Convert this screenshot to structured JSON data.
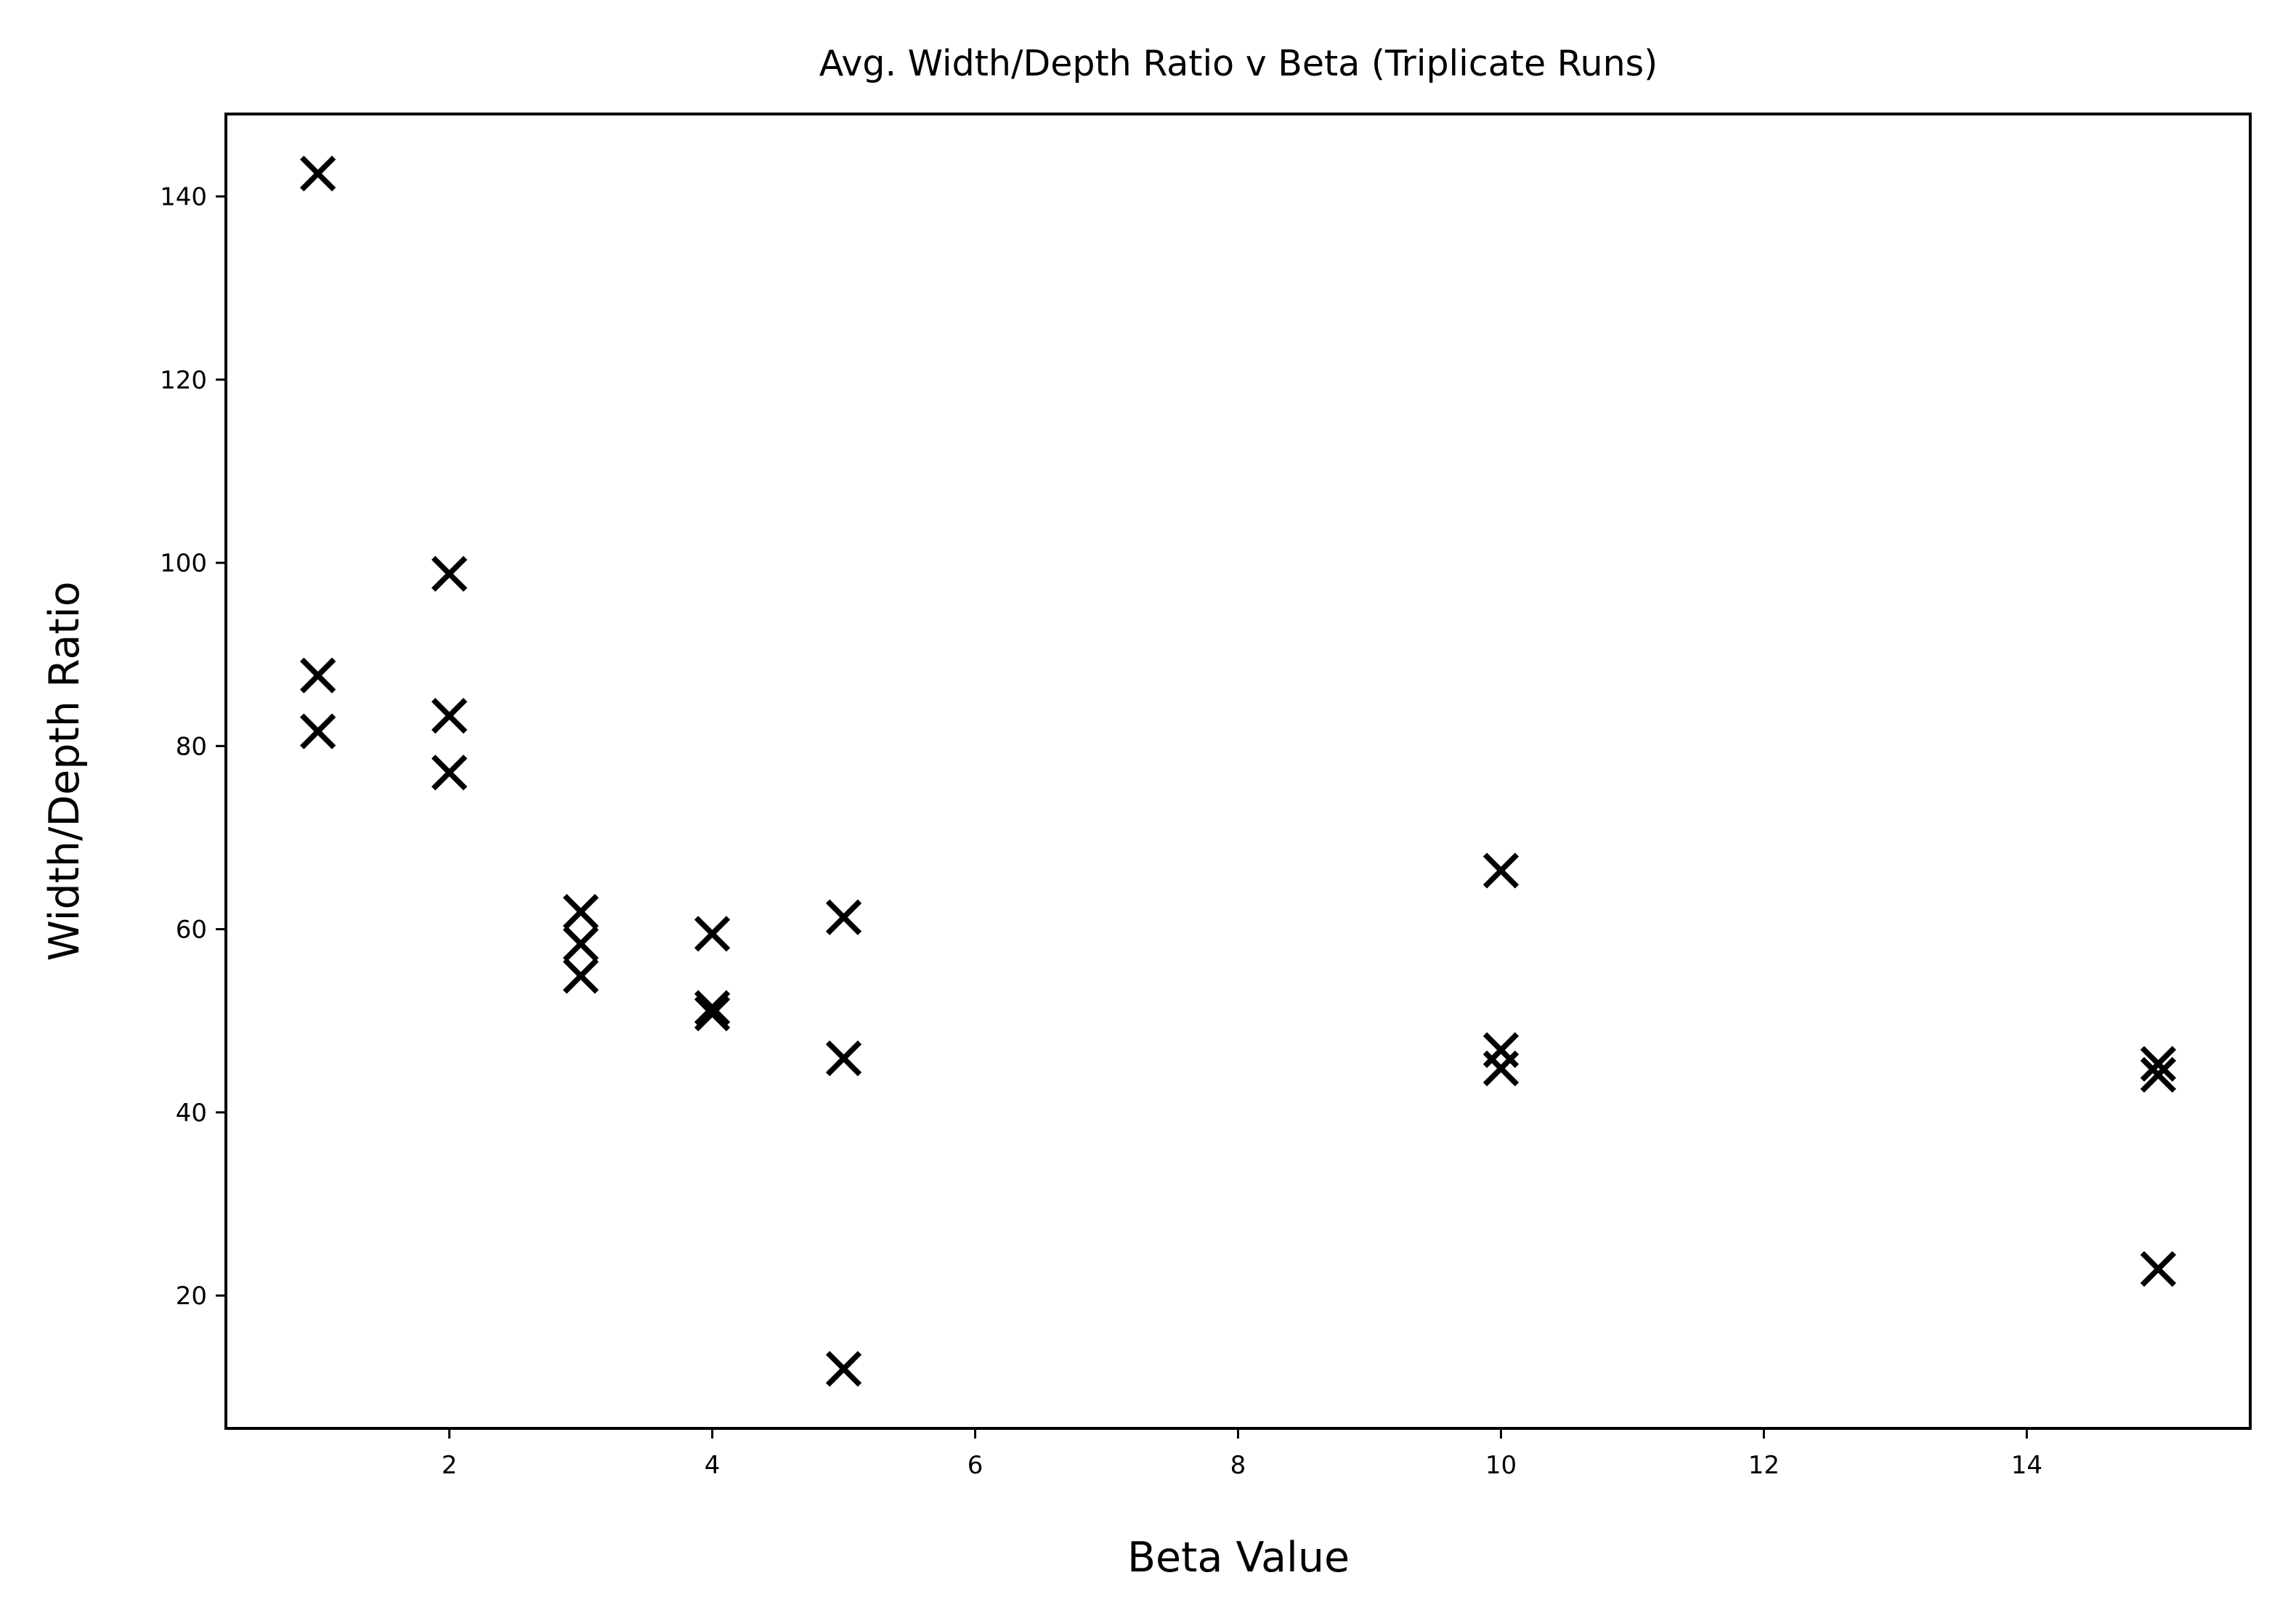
{
  "chart_data": {
    "type": "scatter",
    "title": "Avg. Width/Depth Ratio v Beta (Triplicate Runs)",
    "xlabel": "Beta Value",
    "ylabel": "Width/Depth Ratio",
    "xlim": [
      0.3,
      15.7
    ],
    "ylim": [
      5.5,
      149.0
    ],
    "xticks": [
      2,
      4,
      6,
      8,
      10,
      12,
      14
    ],
    "yticks": [
      20,
      40,
      60,
      80,
      100,
      120,
      140
    ],
    "grid": false,
    "legend": "none",
    "marker": "x",
    "color": "#000000",
    "series": [
      {
        "points": [
          {
            "x": 1,
            "y": 142.5
          },
          {
            "x": 1,
            "y": 87.7
          },
          {
            "x": 1,
            "y": 81.6
          },
          {
            "x": 2,
            "y": 98.8
          },
          {
            "x": 2,
            "y": 83.3
          },
          {
            "x": 2,
            "y": 77.1
          },
          {
            "x": 3,
            "y": 61.9
          },
          {
            "x": 3,
            "y": 58.4
          },
          {
            "x": 3,
            "y": 54.9
          },
          {
            "x": 4,
            "y": 59.5
          },
          {
            "x": 4,
            "y": 51.4
          },
          {
            "x": 4,
            "y": 50.8
          },
          {
            "x": 5,
            "y": 61.3
          },
          {
            "x": 5,
            "y": 45.9
          },
          {
            "x": 5,
            "y": 12.0
          },
          {
            "x": 10,
            "y": 66.4
          },
          {
            "x": 10,
            "y": 46.8
          },
          {
            "x": 10,
            "y": 44.8
          },
          {
            "x": 15,
            "y": 45.3
          },
          {
            "x": 15,
            "y": 44.1
          },
          {
            "x": 15,
            "y": 22.9
          }
        ]
      }
    ]
  }
}
